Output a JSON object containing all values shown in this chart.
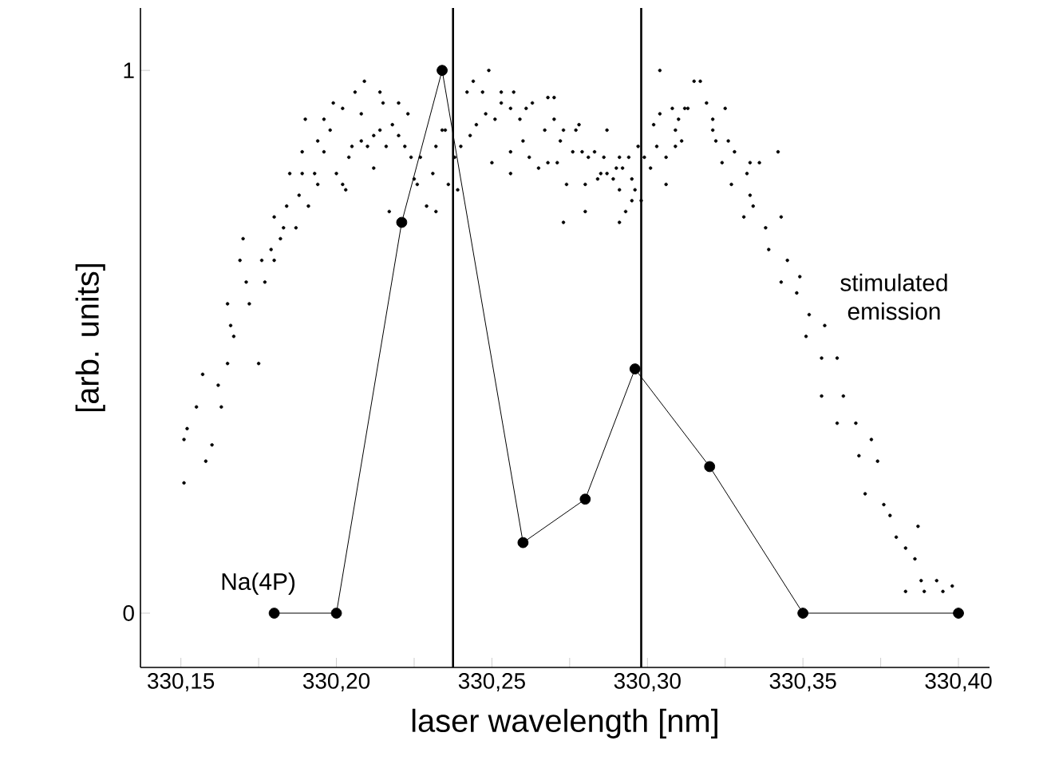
{
  "chart_data": {
    "type": "line",
    "xlabel": "laser wavelength [nm]",
    "ylabel": "[arb. units]",
    "xlim": [
      330.137,
      330.41
    ],
    "ylim": [
      -0.1,
      1.115
    ],
    "xticks": [
      {
        "value": 330.15,
        "label": "330,15"
      },
      {
        "value": 330.175,
        "label": null
      },
      {
        "value": 330.2,
        "label": "330,20"
      },
      {
        "value": 330.225,
        "label": null
      },
      {
        "value": 330.25,
        "label": "330,25"
      },
      {
        "value": 330.275,
        "label": null
      },
      {
        "value": 330.3,
        "label": "330,30"
      },
      {
        "value": 330.325,
        "label": null
      },
      {
        "value": 330.35,
        "label": "330,35"
      },
      {
        "value": 330.375,
        "label": null
      },
      {
        "value": 330.4,
        "label": "330,40"
      }
    ],
    "yticks": [
      0,
      1
    ],
    "grid": false,
    "ref_lines": [
      {
        "axis": "x",
        "value": 330.2375,
        "color": "#000000"
      },
      {
        "axis": "x",
        "value": 330.298,
        "color": "#000000"
      }
    ],
    "series": [
      {
        "name": "stimulated emission",
        "type": "scatter",
        "color": "#000000",
        "marker": "circle",
        "x": [
          330.151,
          330.151,
          330.152,
          330.158,
          330.16,
          330.155,
          330.157,
          330.162,
          330.165,
          330.163,
          330.167,
          330.166,
          330.165,
          330.172,
          330.171,
          330.177,
          330.169,
          330.176,
          330.18,
          330.179,
          330.17,
          330.175,
          330.182,
          330.183,
          330.187,
          330.18,
          330.184,
          330.188,
          330.191,
          330.185,
          330.189,
          330.193,
          330.189,
          330.196,
          330.194,
          330.19,
          330.196,
          330.194,
          330.199,
          330.202,
          330.198,
          330.2,
          330.203,
          330.202,
          330.204,
          330.205,
          330.206,
          330.209,
          330.208,
          330.208,
          330.21,
          330.212,
          330.212,
          330.214,
          330.214,
          330.215,
          330.216,
          330.218,
          330.22,
          330.22,
          330.222,
          330.223,
          330.217,
          330.224,
          330.225,
          330.226,
          330.227,
          330.229,
          330.232,
          330.232,
          330.231,
          330.234,
          330.235,
          330.236,
          330.239,
          330.238,
          330.24,
          330.242,
          330.243,
          330.244,
          330.245,
          330.247,
          330.248,
          330.249,
          330.25,
          330.251,
          330.253,
          330.253,
          330.256,
          330.256,
          330.256,
          330.257,
          330.259,
          330.26,
          330.261,
          330.262,
          330.263,
          330.265,
          330.267,
          330.268,
          330.268,
          330.27,
          330.27,
          330.271,
          330.272,
          330.273,
          330.273,
          330.274,
          330.276,
          330.277,
          330.278,
          330.279,
          330.28,
          330.28,
          330.281,
          330.283,
          330.284,
          330.285,
          330.286,
          330.287,
          330.287,
          330.289,
          330.29,
          330.291,
          330.291,
          330.291,
          330.292,
          330.294,
          330.293,
          330.295,
          330.296,
          330.295,
          330.298,
          330.297,
          330.299,
          330.301,
          330.302,
          330.303,
          330.304,
          330.304,
          330.306,
          330.306,
          330.308,
          330.309,
          330.31,
          330.311,
          330.312,
          330.309,
          330.313,
          330.315,
          330.317,
          330.319,
          330.321,
          330.321,
          330.322,
          330.325,
          330.326,
          330.324,
          330.328,
          330.327,
          330.332,
          330.333,
          330.336,
          330.342,
          330.333,
          330.334,
          330.331,
          330.338,
          330.343,
          330.339,
          330.345,
          330.343,
          330.349,
          330.348,
          330.352,
          330.351,
          330.357,
          330.356,
          330.361,
          330.356,
          330.363,
          330.361,
          330.367,
          330.368,
          330.372,
          330.374,
          330.37,
          330.376,
          330.378,
          330.38,
          330.383,
          330.387,
          330.386,
          330.383,
          330.388,
          330.389,
          330.393,
          330.395,
          330.398
        ],
        "values": [
          0.24,
          0.32,
          0.34,
          0.28,
          0.31,
          0.38,
          0.44,
          0.42,
          0.46,
          0.38,
          0.51,
          0.53,
          0.57,
          0.57,
          0.61,
          0.61,
          0.65,
          0.65,
          0.65,
          0.67,
          0.69,
          0.46,
          0.69,
          0.71,
          0.71,
          0.73,
          0.75,
          0.77,
          0.75,
          0.81,
          0.81,
          0.81,
          0.85,
          0.85,
          0.79,
          0.91,
          0.91,
          0.87,
          0.94,
          0.93,
          0.89,
          0.81,
          0.78,
          0.79,
          0.84,
          0.86,
          0.96,
          0.98,
          0.92,
          0.87,
          0.86,
          0.88,
          0.82,
          0.96,
          0.89,
          0.94,
          0.86,
          0.9,
          0.94,
          0.88,
          0.86,
          0.92,
          0.74,
          0.84,
          0.8,
          0.79,
          0.84,
          0.75,
          0.86,
          0.74,
          0.81,
          0.89,
          0.89,
          0.79,
          0.78,
          0.84,
          0.86,
          0.96,
          0.88,
          0.98,
          0.9,
          0.96,
          0.92,
          1.0,
          0.83,
          0.91,
          0.96,
          0.94,
          0.93,
          0.85,
          0.81,
          0.96,
          0.91,
          0.87,
          0.93,
          0.84,
          0.94,
          0.82,
          0.89,
          0.95,
          0.83,
          0.95,
          0.91,
          0.83,
          0.87,
          0.72,
          0.89,
          0.79,
          0.85,
          0.89,
          0.9,
          0.85,
          0.79,
          0.74,
          0.84,
          0.85,
          0.8,
          0.81,
          0.84,
          0.89,
          0.81,
          0.8,
          0.82,
          0.84,
          0.78,
          0.72,
          0.82,
          0.84,
          0.74,
          0.8,
          0.78,
          0.76,
          0.76,
          0.86,
          0.84,
          0.82,
          0.9,
          0.86,
          1.0,
          0.92,
          0.84,
          0.79,
          0.93,
          0.86,
          0.91,
          0.87,
          0.93,
          0.89,
          0.93,
          0.98,
          0.98,
          0.94,
          0.91,
          0.89,
          0.87,
          0.93,
          0.87,
          0.83,
          0.85,
          0.79,
          0.81,
          0.83,
          0.83,
          0.85,
          0.77,
          0.75,
          0.73,
          0.71,
          0.73,
          0.67,
          0.65,
          0.61,
          0.62,
          0.59,
          0.55,
          0.51,
          0.53,
          0.47,
          0.47,
          0.4,
          0.4,
          0.35,
          0.35,
          0.29,
          0.32,
          0.28,
          0.22,
          0.2,
          0.18,
          0.14,
          0.12,
          0.16,
          0.1,
          0.04,
          0.06,
          0.04,
          0.06,
          0.04,
          0.05
        ]
      },
      {
        "name": "Na(4P)",
        "color": "#000000",
        "marker": "circle",
        "line_style": "solid",
        "x": [
          330.18,
          330.2,
          330.221,
          330.234,
          330.26,
          330.28,
          330.296,
          330.32,
          330.35,
          330.4
        ],
        "values": [
          0,
          0,
          0.72,
          1.0,
          0.13,
          0.21,
          0.45,
          0.27,
          0,
          0
        ]
      }
    ]
  }
}
